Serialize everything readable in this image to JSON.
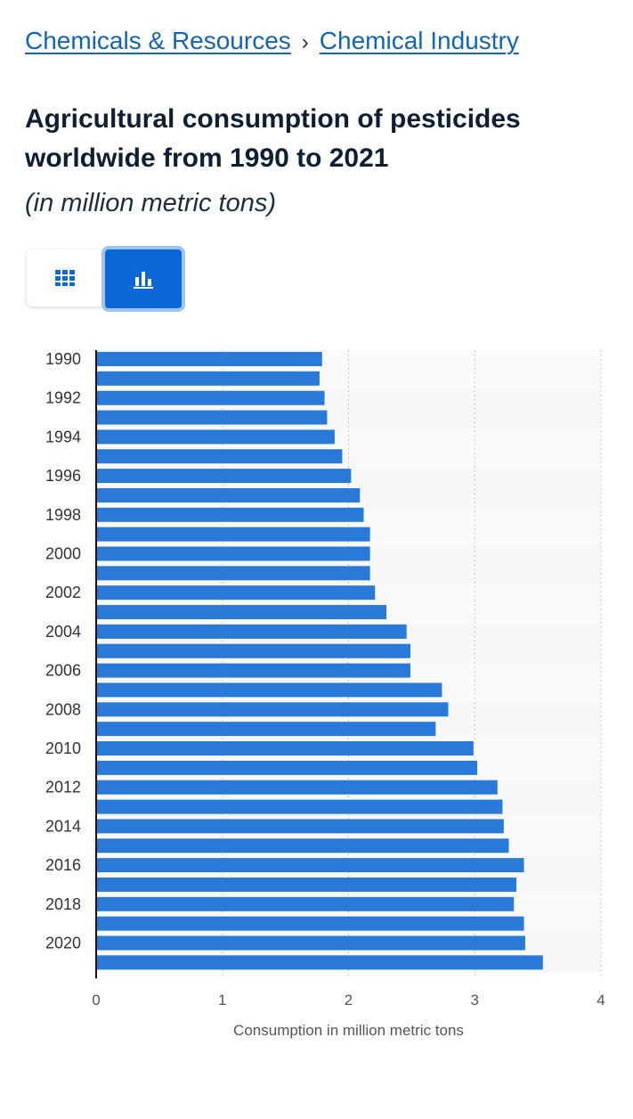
{
  "breadcrumb": {
    "items": [
      {
        "label": "Chemicals & Resources"
      },
      {
        "label": "Chemical Industry"
      }
    ],
    "separator": "›"
  },
  "header": {
    "title": "Agricultural consumption of pesticides worldwide from 1990 to 2021",
    "subtitle": "(in million metric tons)"
  },
  "view_toggle": {
    "options": [
      {
        "icon": "table-grid-icon",
        "active": false
      },
      {
        "icon": "bar-chart-icon",
        "active": true
      }
    ],
    "accent": "#0b66d8"
  },
  "chart_data": {
    "type": "bar",
    "orientation": "horizontal",
    "categories": [
      "1990",
      "1991",
      "1992",
      "1993",
      "1994",
      "1995",
      "1996",
      "1997",
      "1998",
      "1999",
      "2000",
      "2001",
      "2002",
      "2003",
      "2004",
      "2005",
      "2006",
      "2007",
      "2008",
      "2009",
      "2010",
      "2011",
      "2012",
      "2013",
      "2014",
      "2015",
      "2016",
      "2017",
      "2018",
      "2019",
      "2020",
      "2021"
    ],
    "category_tick_labels": [
      "1990",
      "",
      "1992",
      "",
      "1994",
      "",
      "1996",
      "",
      "1998",
      "",
      "2000",
      "",
      "2002",
      "",
      "2004",
      "",
      "2006",
      "",
      "2008",
      "",
      "2010",
      "",
      "2012",
      "",
      "2014",
      "",
      "2016",
      "",
      "2018",
      "",
      "2020",
      ""
    ],
    "series": [
      {
        "values": [
          1.79,
          1.77,
          1.81,
          1.83,
          1.89,
          1.95,
          2.02,
          2.09,
          2.12,
          2.17,
          2.17,
          2.17,
          2.21,
          2.3,
          2.46,
          2.49,
          2.49,
          2.74,
          2.79,
          2.69,
          2.99,
          3.02,
          3.18,
          3.22,
          3.23,
          3.27,
          3.39,
          3.33,
          3.31,
          3.39,
          3.4,
          3.54
        ],
        "color": "#2979d9"
      }
    ],
    "xlabel": "Consumption in million metric tons",
    "xlim": [
      0,
      4
    ],
    "xticks": [
      "0",
      "1",
      "2",
      "3",
      "4"
    ],
    "grid": true,
    "band_color": "#f7f7f7",
    "legend": "none"
  }
}
